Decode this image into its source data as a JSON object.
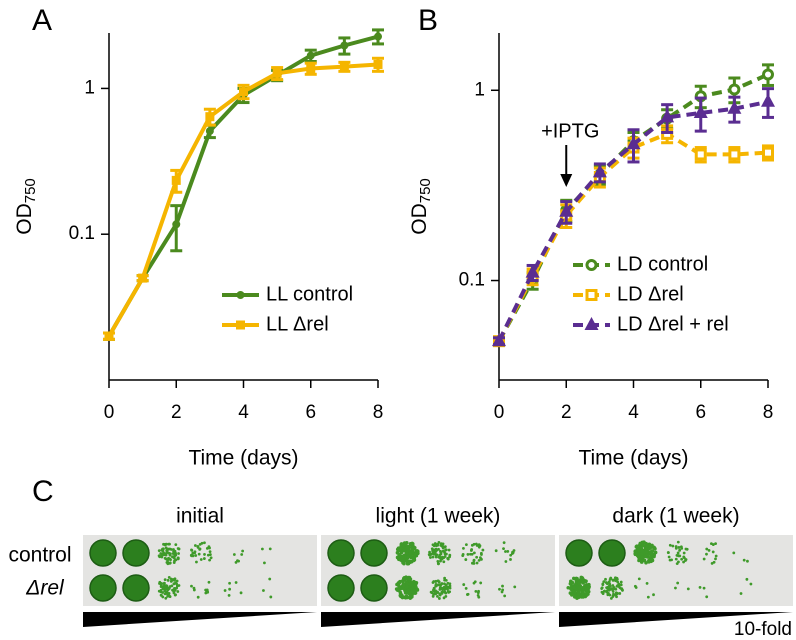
{
  "chart_data": [
    {
      "type": "line",
      "panel": "A",
      "xlabel": "Time (days)",
      "ylabel": "OD",
      "ylabel_sub": "750",
      "x": [
        0,
        1,
        2,
        3,
        4,
        5,
        6,
        7,
        8
      ],
      "xlim": [
        0,
        8
      ],
      "xticks": [
        0,
        2,
        4,
        6,
        8
      ],
      "ylim": [
        0.01,
        2.4
      ],
      "yticks": [
        0.1,
        1
      ],
      "log_y": true,
      "legend": "lower right",
      "line_style": "solid",
      "series": [
        {
          "name": "LL control",
          "color": "#4b8a1e",
          "marker": "circle",
          "values": [
            0.02,
            0.05,
            0.117,
            0.51,
            0.9,
            1.23,
            1.68,
            1.97,
            2.27
          ],
          "errors": [
            0.001,
            0.002,
            0.04,
            0.05,
            0.1,
            0.1,
            0.15,
            0.25,
            0.25
          ]
        },
        {
          "name": "LL Δrel",
          "color": "#f5b500",
          "marker": "square",
          "values": [
            0.02,
            0.05,
            0.234,
            0.64,
            0.95,
            1.27,
            1.37,
            1.41,
            1.46
          ],
          "errors": [
            0.001,
            0.002,
            0.04,
            0.08,
            0.1,
            0.12,
            0.12,
            0.1,
            0.15
          ]
        }
      ]
    },
    {
      "type": "line",
      "panel": "B",
      "xlabel": "Time (days)",
      "ylabel": "OD",
      "ylabel_sub": "750",
      "x": [
        0,
        1,
        2,
        3,
        4,
        5,
        6,
        7,
        8
      ],
      "xlim": [
        0,
        8
      ],
      "xticks": [
        0,
        2,
        4,
        6,
        8
      ],
      "ylim": [
        0.03,
        2
      ],
      "yticks": [
        0.1,
        1
      ],
      "log_y": true,
      "legend": "lower right",
      "line_style": "dashed",
      "annotation": {
        "text": "+IPTG",
        "x": 2
      },
      "series": [
        {
          "name": "LD control",
          "color": "#4b8a1e",
          "marker": "circle-open",
          "values": [
            0.048,
            0.1,
            0.234,
            0.36,
            0.54,
            0.71,
            0.93,
            1.01,
            1.21
          ],
          "errors": [
            0.002,
            0.01,
            0.03,
            0.04,
            0.06,
            0.08,
            0.12,
            0.15,
            0.15
          ]
        },
        {
          "name": "LD Δrel",
          "color": "#f5b500",
          "marker": "square-open",
          "values": [
            0.048,
            0.105,
            0.22,
            0.35,
            0.5,
            0.59,
            0.46,
            0.46,
            0.47
          ],
          "errors": [
            0.002,
            0.01,
            0.03,
            0.04,
            0.06,
            0.06,
            0.04,
            0.04,
            0.04
          ]
        },
        {
          "name": "LD Δrel + rel",
          "color": "#5a2d91",
          "marker": "triangle",
          "values": [
            0.048,
            0.11,
            0.23,
            0.37,
            0.52,
            0.72,
            0.76,
            0.8,
            0.87
          ],
          "errors": [
            0.002,
            0.01,
            0.03,
            0.04,
            0.1,
            0.12,
            0.15,
            0.12,
            0.15
          ]
        }
      ]
    }
  ],
  "panel_c": {
    "label": "C",
    "columns": [
      "initial",
      "light (1 week)",
      "dark (1 week)"
    ],
    "rows": [
      "control",
      "Δrel"
    ],
    "dilution": "10-fold"
  }
}
